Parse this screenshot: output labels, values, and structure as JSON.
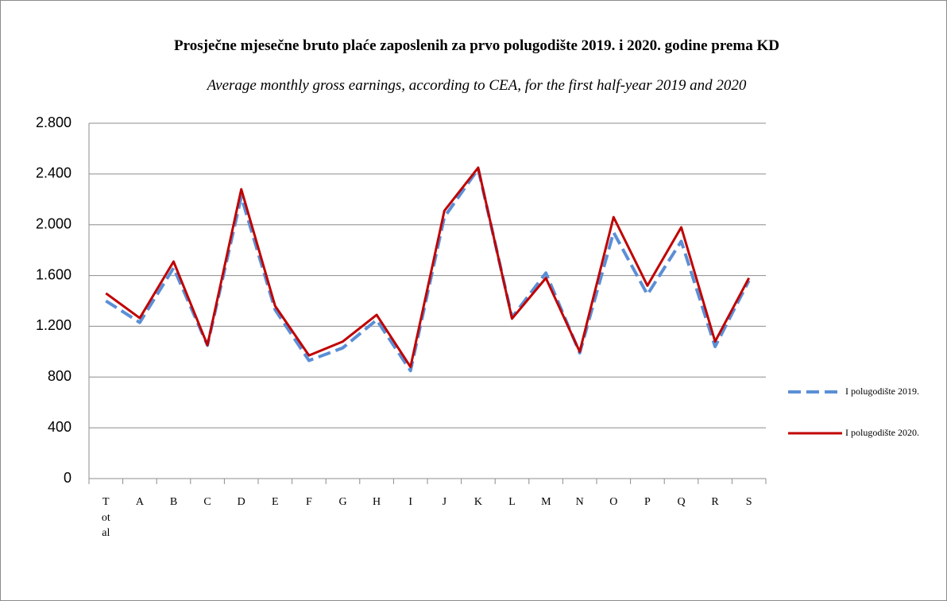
{
  "chart_data": {
    "type": "line",
    "title": "Prosječne mjesečne bruto plaće zaposlenih za prvo polugodište 2019. i 2020.  godine prema KD",
    "subtitle": "Average monthly gross earnings, according to CEA, for the first half-year 2019 and 2020",
    "categories": [
      "Total",
      "A",
      "B",
      "C",
      "D",
      "E",
      "F",
      "G",
      "H",
      "I",
      "J",
      "K",
      "L",
      "M",
      "N",
      "O",
      "P",
      "Q",
      "R",
      "S"
    ],
    "series": [
      {
        "name": "I polugodište 2019.",
        "color": "#5b8fd6",
        "dashed": true,
        "values": [
          1400,
          1230,
          1660,
          1050,
          2220,
          1330,
          930,
          1030,
          1250,
          850,
          2060,
          2440,
          1270,
          1620,
          990,
          1940,
          1450,
          1870,
          1040,
          1560
        ]
      },
      {
        "name": "I polugodište 2020.",
        "color": "#c00000",
        "dashed": false,
        "values": [
          1460,
          1265,
          1710,
          1052,
          2280,
          1360,
          970,
          1080,
          1290,
          880,
          2110,
          2450,
          1260,
          1580,
          1000,
          2060,
          1520,
          1980,
          1080,
          1580
        ]
      }
    ],
    "ylim": [
      0,
      2800
    ],
    "yticks": [
      0,
      400,
      800,
      {
        "value": 1200,
        "label": "1.200"
      },
      {
        "value": 1600,
        "label": "1.600"
      },
      {
        "value": 2000,
        "label": "2.000"
      },
      {
        "value": 2400,
        "label": "2.400"
      },
      {
        "value": 2800,
        "label": "2.800"
      }
    ],
    "grid": true,
    "legend": "right"
  }
}
